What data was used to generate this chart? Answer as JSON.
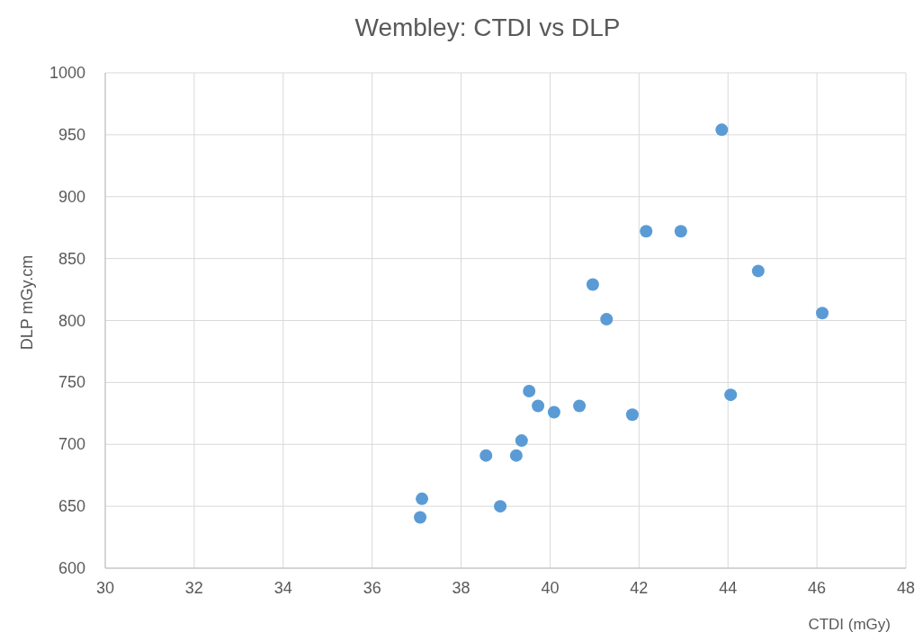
{
  "chart_data": {
    "type": "scatter",
    "title": "Wembley: CTDI vs DLP",
    "xlabel": "CTDI (mGy)",
    "ylabel": "DLP mGy.cm",
    "x": [
      43.86,
      42.16,
      42.94,
      44.68,
      40.96,
      41.27,
      46.12,
      39.53,
      44.06,
      39.73,
      40.66,
      40.09,
      41.85,
      39.36,
      38.56,
      39.24,
      37.12,
      37.08,
      38.88
    ],
    "values": [
      954,
      872,
      872,
      840,
      829,
      801,
      806,
      743,
      740,
      731,
      731,
      726,
      724,
      703,
      691,
      691,
      656,
      641,
      650
    ],
    "color": "#5b9bd5",
    "marker": "circle",
    "xlim": [
      30,
      48
    ],
    "xticks": [
      30,
      32,
      34,
      36,
      38,
      40,
      42,
      44,
      46,
      48
    ],
    "ylim": [
      600,
      1000
    ],
    "yticks": [
      600,
      650,
      700,
      750,
      800,
      850,
      900,
      950,
      1000
    ],
    "grid": true
  }
}
